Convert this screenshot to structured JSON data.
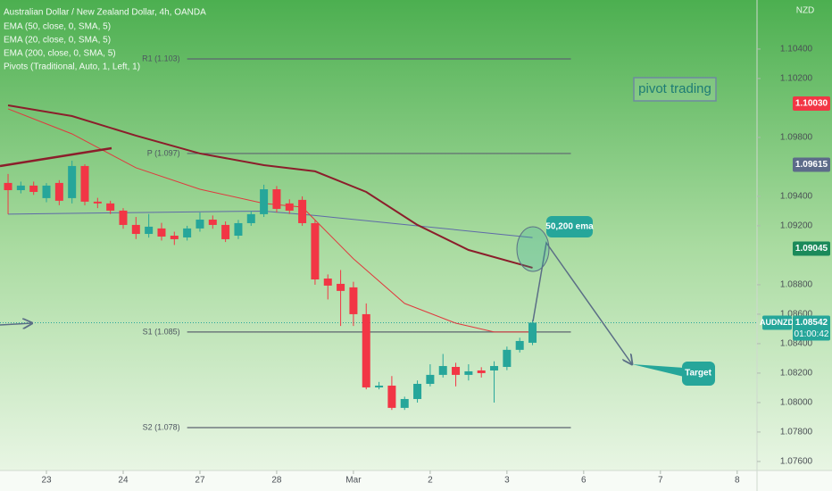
{
  "chart_data": {
    "type": "candlestick",
    "title": "Australian Dollar / New Zealand Dollar, 4h, OANDA",
    "currency": "NZD",
    "x": [
      0,
      1,
      2,
      3,
      4,
      5,
      6,
      7,
      8,
      9,
      10,
      11,
      12,
      13,
      14,
      15,
      16,
      17,
      18,
      19,
      20,
      21,
      22,
      23,
      24,
      25,
      26,
      27,
      28,
      29,
      30,
      31,
      32,
      33,
      34,
      35,
      36,
      37,
      38,
      39,
      40,
      41
    ],
    "open": [
      1.09491,
      1.09442,
      1.09473,
      1.09388,
      1.09491,
      1.09388,
      1.09606,
      1.09364,
      1.09352,
      1.09303,
      1.09206,
      1.09145,
      1.09182,
      1.09133,
      1.09121,
      1.09182,
      1.09242,
      1.09206,
      1.09133,
      1.09218,
      1.09279,
      1.09448,
      1.09352,
      1.09376,
      1.09218,
      1.08842,
      1.08806,
      1.08782,
      1.086,
      1.08103,
      1.08115,
      1.07964,
      1.08024,
      1.08127,
      1.08188,
      1.08242,
      1.08188,
      1.08218,
      1.08218,
      1.08242,
      1.08358,
      1.08406
    ],
    "high": [
      1.09552,
      1.095,
      1.095,
      1.0949,
      1.0951,
      1.09642,
      1.09618,
      1.0939,
      1.0937,
      1.0932,
      1.0926,
      1.0928,
      1.0922,
      1.0916,
      1.092,
      1.0929,
      1.0927,
      1.0923,
      1.0924,
      1.093,
      1.09479,
      1.0947,
      1.0938,
      1.094,
      1.0924,
      1.0887,
      1.089,
      1.0882,
      1.08673,
      1.0814,
      1.0818,
      1.0804,
      1.0815,
      1.0826,
      1.0833,
      1.0827,
      1.0826,
      1.0824,
      1.0828,
      1.0838,
      1.0844,
      1.0856
    ],
    "low": [
      1.09279,
      1.0942,
      1.0941,
      1.0936,
      1.0934,
      1.09352,
      1.09339,
      1.0932,
      1.0928,
      1.0918,
      1.0911,
      1.0912,
      1.091,
      1.0907,
      1.091,
      1.0916,
      1.0918,
      1.0909,
      1.0911,
      1.092,
      1.0926,
      1.0929,
      1.0928,
      1.092,
      1.088,
      1.087,
      1.0852,
      1.0852,
      1.0809,
      1.0809,
      1.0795,
      1.0795,
      1.08,
      1.0811,
      1.0817,
      1.0811,
      1.0815,
      1.0817,
      1.08,
      1.0822,
      1.0834,
      1.0839
    ],
    "close": [
      1.09442,
      1.09473,
      1.0943,
      1.09473,
      1.0937,
      1.09606,
      1.09364,
      1.09352,
      1.09303,
      1.09206,
      1.09145,
      1.09194,
      1.09127,
      1.09109,
      1.09182,
      1.09242,
      1.09206,
      1.09109,
      1.09218,
      1.09279,
      1.09448,
      1.09315,
      1.09303,
      1.09218,
      1.08836,
      1.08794,
      1.08758,
      1.086,
      1.08103,
      1.08115,
      1.07964,
      1.08024,
      1.08127,
      1.08188,
      1.08248,
      1.08188,
      1.08212,
      1.082,
      1.08248,
      1.08358,
      1.08418,
      1.08542
    ],
    "up_color": "#26a69a",
    "down_color": "#f23645",
    "series": [
      {
        "name": "EMA (50, close, 0, SMA, 5)",
        "color": "#5f6aa8",
        "width": 1,
        "x": [
          0,
          10,
          20,
          24,
          32,
          41
        ],
        "values": [
          1.09279,
          1.0929,
          1.093,
          1.0927,
          1.092,
          1.0912
        ]
      },
      {
        "name": "EMA (20, close, 0, SMA, 5)",
        "color": "#e0393e",
        "width": 1,
        "x": [
          0,
          5,
          10,
          15,
          20,
          23,
          27,
          31,
          35,
          38,
          41
        ],
        "values": [
          1.09994,
          1.09824,
          1.09594,
          1.09448,
          1.09352,
          1.09327,
          1.08976,
          1.08673,
          1.08539,
          1.08479,
          1.08479
        ]
      },
      {
        "name": "EMA (200, close, 0, SMA, 5)",
        "color": "#8b1e2b",
        "width": 2,
        "x": [
          0,
          5,
          10,
          15,
          20,
          24,
          28,
          32,
          36,
          41
        ],
        "values": [
          1.10018,
          1.09945,
          1.09812,
          1.09691,
          1.09612,
          1.0957,
          1.0943,
          1.09206,
          1.09036,
          1.08915
        ]
      }
    ],
    "pivots": {
      "name": "Pivots (Traditional, Auto, 1, Left, 1)",
      "color": "#5d6470",
      "x": [
        14,
        44
      ],
      "levels": [
        {
          "label": "R1 (1.103)",
          "value": 1.10333
        },
        {
          "label": "P (1.097)",
          "value": 1.09691
        },
        {
          "label": "S1 (1.085)",
          "value": 1.08479
        },
        {
          "label": "S2 (1.078)",
          "value": 1.0783
        }
      ]
    },
    "price_labels": [
      {
        "value": 1.1003,
        "label": "1.10030",
        "color": "#f23645"
      },
      {
        "value": 1.09615,
        "label": "1.09615",
        "color": "#5d6b8a"
      },
      {
        "value": 1.09045,
        "label": "1.09045",
        "color": "#1b8a5a"
      }
    ],
    "last_price": {
      "name": "AUDNZD",
      "value": 1.08542,
      "label": "1.08542",
      "countdown": "01:00:42",
      "color": "#26a69a"
    },
    "annotations": [
      "pivot trading",
      "50,200 ema",
      "Target"
    ],
    "xlim": [
      -0.63,
      58.55
    ],
    "xticks": [
      {
        "value": 3,
        "label": "23"
      },
      {
        "value": 9,
        "label": "24"
      },
      {
        "value": 15,
        "label": "27"
      },
      {
        "value": 21,
        "label": "28"
      },
      {
        "value": 27,
        "label": "Mar"
      },
      {
        "value": 33,
        "label": "2"
      },
      {
        "value": 39,
        "label": "3"
      },
      {
        "value": 45,
        "label": "6"
      },
      {
        "value": 51,
        "label": "7"
      },
      {
        "value": 57,
        "label": "8"
      }
    ],
    "ylim": [
      1.07539,
      1.10733
    ],
    "yticks": [
      {
        "value": 1.104,
        "label": "1.10400"
      },
      {
        "value": 1.102,
        "label": "1.10200"
      },
      {
        "value": 1.098,
        "label": "1.09800"
      },
      {
        "value": 1.094,
        "label": "1.09400"
      },
      {
        "value": 1.092,
        "label": "1.09200"
      },
      {
        "value": 1.088,
        "label": "1.08800"
      },
      {
        "value": 1.086,
        "label": "1.08600"
      },
      {
        "value": 1.084,
        "label": "1.08400"
      },
      {
        "value": 1.082,
        "label": "1.08200"
      },
      {
        "value": 1.08,
        "label": "1.08000"
      },
      {
        "value": 1.078,
        "label": "1.07800"
      },
      {
        "value": 1.076,
        "label": "1.07600"
      }
    ]
  }
}
